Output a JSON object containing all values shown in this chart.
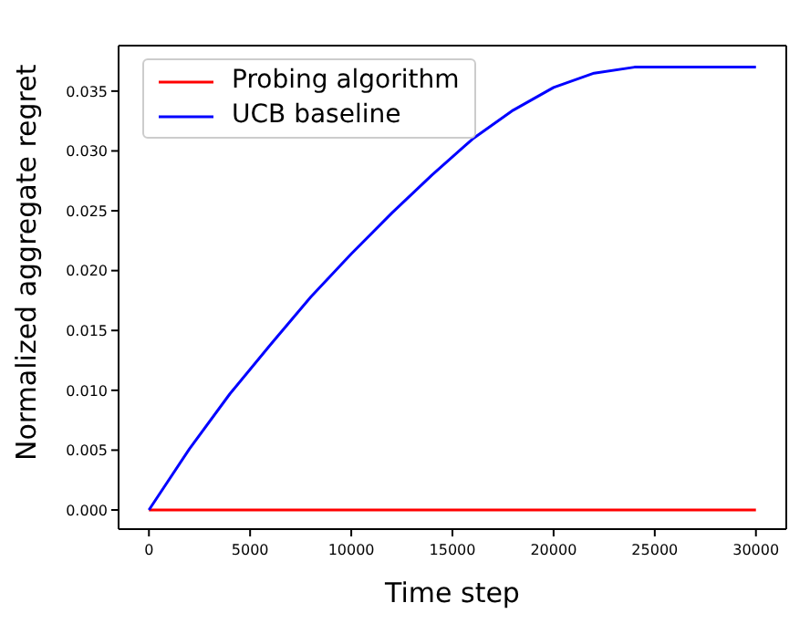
{
  "chart_data": {
    "type": "line",
    "xlabel": "Time step",
    "ylabel": "Normalized aggregate regret",
    "x": [
      0,
      2000,
      4000,
      6000,
      8000,
      10000,
      12000,
      14000,
      16000,
      18000,
      20000,
      22000,
      24000,
      30000
    ],
    "series": [
      {
        "name": "Probing algorithm",
        "color": "#ff0000",
        "values": [
          0,
          0,
          0,
          0,
          0,
          0,
          0,
          0,
          0,
          0,
          0,
          0,
          0,
          0
        ]
      },
      {
        "name": "UCB baseline",
        "color": "#0000ff",
        "values": [
          0,
          0.0051,
          0.0097,
          0.0138,
          0.0178,
          0.0214,
          0.0248,
          0.028,
          0.031,
          0.0334,
          0.0353,
          0.0365,
          0.037,
          0.037
        ]
      }
    ],
    "xlim": [
      -1500,
      31500
    ],
    "xticks": [
      0,
      5000,
      10000,
      15000,
      20000,
      25000,
      30000
    ],
    "ylim": [
      -0.0016,
      0.0388
    ],
    "yticks": [
      {
        "value": 0,
        "label": "0.000"
      },
      {
        "value": 0.005,
        "label": "0.005"
      },
      {
        "value": 0.01,
        "label": "0.010"
      },
      {
        "value": 0.015,
        "label": "0.015"
      },
      {
        "value": 0.02,
        "label": "0.020"
      },
      {
        "value": 0.025,
        "label": "0.025"
      },
      {
        "value": 0.03,
        "label": "0.030"
      },
      {
        "value": 0.035,
        "label": "0.035"
      }
    ],
    "legend": "top left",
    "grid": false,
    "marker": "none",
    "line_style": "solid"
  }
}
